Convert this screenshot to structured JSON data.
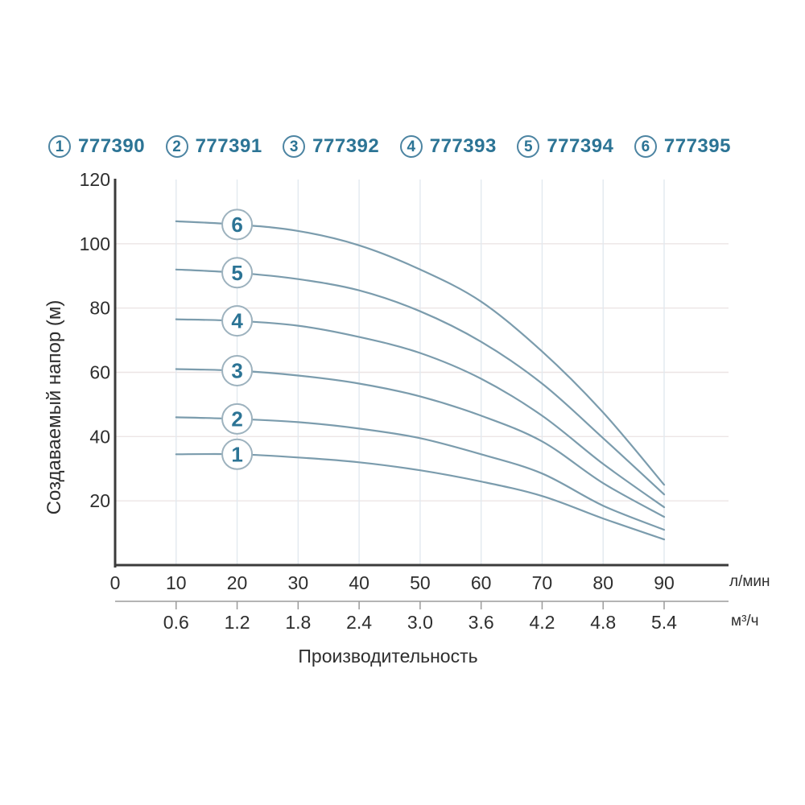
{
  "colors": {
    "accent_teal": "#2c7495",
    "legend_circle_border": "#4c84a2",
    "curve": "#7b9cad",
    "curve_label_circle_border": "#9db2be",
    "axis": "#3b3b3b",
    "sub_axis": "#9b9b9b",
    "grid_horizontal": "#ece5e5",
    "grid_vertical": "#e2e9ef",
    "tick_text": "#2e2e2e"
  },
  "legend": {
    "items": [
      {
        "num": "1",
        "code": "777390"
      },
      {
        "num": "2",
        "code": "777391"
      },
      {
        "num": "3",
        "code": "777392"
      },
      {
        "num": "4",
        "code": "777393"
      },
      {
        "num": "5",
        "code": "777394"
      },
      {
        "num": "6",
        "code": "777395"
      }
    ]
  },
  "chart_data": {
    "type": "line",
    "title": "",
    "xlabel": "Производительность",
    "ylabel": "Создаваемый напор (м)",
    "x_unit_primary": "л/мин",
    "x_unit_secondary": "м³/ч",
    "xlim": [
      0,
      90
    ],
    "ylim": [
      0,
      120
    ],
    "grid": true,
    "legend_position": "top",
    "x_ticks_primary": [
      0,
      10,
      20,
      30,
      40,
      50,
      60,
      70,
      80,
      90
    ],
    "x_ticks_secondary": [
      "0.6",
      "1.2",
      "1.8",
      "2.4",
      "3.0",
      "3.6",
      "4.2",
      "4.8",
      "5.4"
    ],
    "x_ticks_secondary_positions": [
      10,
      20,
      30,
      40,
      50,
      60,
      70,
      80,
      90
    ],
    "y_ticks": [
      20,
      40,
      60,
      80,
      100,
      120
    ],
    "x": [
      10,
      20,
      30,
      40,
      50,
      60,
      70,
      80,
      90
    ],
    "series": [
      {
        "name": "1",
        "code": "777390",
        "values": [
          34.5,
          34.5,
          33.5,
          32,
          29.5,
          26,
          21.5,
          14.5,
          8
        ]
      },
      {
        "name": "2",
        "code": "777391",
        "values": [
          46,
          45.5,
          44.5,
          42.5,
          39.5,
          34.5,
          28.5,
          18.5,
          11
        ]
      },
      {
        "name": "3",
        "code": "777392",
        "values": [
          61,
          60.5,
          59,
          56.5,
          52.5,
          46.5,
          38.5,
          25.5,
          15
        ]
      },
      {
        "name": "4",
        "code": "777393",
        "values": [
          76.5,
          76,
          74.5,
          71,
          66,
          58,
          46.5,
          31.5,
          18
        ]
      },
      {
        "name": "5",
        "code": "777394",
        "values": [
          92,
          91,
          89,
          85.5,
          79,
          69.5,
          56.5,
          39.5,
          22
        ]
      },
      {
        "name": "6",
        "code": "777395",
        "values": [
          107,
          106,
          104,
          99.5,
          92,
          82,
          66.5,
          47.5,
          25
        ]
      }
    ],
    "series_label_at_x": 20
  }
}
